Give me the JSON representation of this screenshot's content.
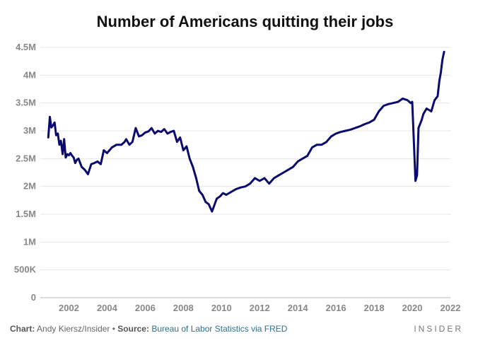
{
  "title": "Number of Americans quitting their jobs",
  "footer": {
    "chart_label": "Chart:",
    "chart_author": "Andy Kiersz/Insider",
    "separator": "•",
    "source_label": "Source:",
    "source_text": "Bureau of Labor Statistics via FRED"
  },
  "brand": "INSIDER",
  "colors": {
    "line": "#0b0b6e",
    "grid": "#e6e6e6",
    "tick_text": "#888888"
  },
  "chart_data": {
    "type": "line",
    "title": "Number of Americans quitting their jobs",
    "xlabel": "",
    "ylabel": "",
    "xlim": [
      2000.5,
      2022.0
    ],
    "ylim": [
      0,
      4.5
    ],
    "grid": true,
    "legend": "none",
    "y_ticks": [
      {
        "value": 0,
        "label": "0"
      },
      {
        "value": 0.5,
        "label": "500K"
      },
      {
        "value": 1,
        "label": "1M"
      },
      {
        "value": 1.5,
        "label": "1.5M"
      },
      {
        "value": 2,
        "label": "2M"
      },
      {
        "value": 2.5,
        "label": "2.5M"
      },
      {
        "value": 3,
        "label": "3M"
      },
      {
        "value": 3.5,
        "label": "3.5M"
      },
      {
        "value": 4,
        "label": "4M"
      },
      {
        "value": 4.5,
        "label": "4.5M"
      }
    ],
    "x_ticks": [
      {
        "value": 2002,
        "label": "2002"
      },
      {
        "value": 2004,
        "label": "2004"
      },
      {
        "value": 2006,
        "label": "2006"
      },
      {
        "value": 2008,
        "label": "2008"
      },
      {
        "value": 2010,
        "label": "2010"
      },
      {
        "value": 2012,
        "label": "2012"
      },
      {
        "value": 2014,
        "label": "2014"
      },
      {
        "value": 2016,
        "label": "2016"
      },
      {
        "value": 2018,
        "label": "2018"
      },
      {
        "value": 2020,
        "label": "2020"
      },
      {
        "value": 2022,
        "label": "2022"
      }
    ],
    "series": [
      {
        "x": [
          2000.92,
          2001.0,
          2001.08,
          2001.17,
          2001.25,
          2001.33,
          2001.42,
          2001.5,
          2001.58,
          2001.67,
          2001.75,
          2001.83,
          2001.92,
          2002.0,
          2002.08,
          2002.17,
          2002.25,
          2002.33,
          2002.42,
          2002.5,
          2002.67,
          2002.83,
          2003.0,
          2003.17,
          2003.33,
          2003.5,
          2003.67,
          2003.83,
          2004.0,
          2004.25,
          2004.5,
          2004.75,
          2004.92,
          2005.0,
          2005.17,
          2005.33,
          2005.5,
          2005.67,
          2005.83,
          2006.0,
          2006.17,
          2006.33,
          2006.5,
          2006.67,
          2006.83,
          2007.0,
          2007.17,
          2007.33,
          2007.5,
          2007.67,
          2007.83,
          2008.0,
          2008.17,
          2008.33,
          2008.5,
          2008.67,
          2008.83,
          2009.0,
          2009.17,
          2009.33,
          2009.5,
          2009.58,
          2009.75,
          2009.92,
          2010.08,
          2010.25,
          2010.5,
          2010.75,
          2011.0,
          2011.25,
          2011.5,
          2011.75,
          2012.0,
          2012.25,
          2012.5,
          2012.75,
          2013.0,
          2013.25,
          2013.5,
          2013.75,
          2014.0,
          2014.25,
          2014.5,
          2014.75,
          2015.0,
          2015.25,
          2015.5,
          2015.75,
          2016.0,
          2016.25,
          2016.5,
          2016.75,
          2017.0,
          2017.25,
          2017.5,
          2017.75,
          2018.0,
          2018.25,
          2018.5,
          2018.75,
          2019.0,
          2019.25,
          2019.5,
          2019.75,
          2019.92,
          2020.0,
          2020.17,
          2020.25,
          2020.33,
          2020.5,
          2020.58,
          2020.75,
          2021.0,
          2021.17,
          2021.33,
          2021.42,
          2021.5,
          2021.58,
          2021.67
        ],
        "y": [
          2.88,
          3.25,
          3.06,
          3.1,
          3.15,
          2.92,
          2.95,
          2.75,
          2.82,
          2.58,
          2.85,
          2.52,
          2.58,
          2.56,
          2.6,
          2.55,
          2.52,
          2.42,
          2.48,
          2.5,
          2.35,
          2.3,
          2.22,
          2.4,
          2.42,
          2.45,
          2.4,
          2.65,
          2.6,
          2.7,
          2.75,
          2.75,
          2.8,
          2.85,
          2.75,
          2.8,
          3.05,
          2.9,
          2.92,
          2.97,
          2.99,
          3.05,
          2.95,
          3.0,
          2.98,
          3.03,
          2.95,
          2.98,
          3.0,
          2.8,
          2.88,
          2.65,
          2.72,
          2.5,
          2.35,
          2.15,
          1.92,
          1.85,
          1.72,
          1.68,
          1.55,
          1.62,
          1.78,
          1.82,
          1.88,
          1.85,
          1.9,
          1.95,
          1.98,
          2.0,
          2.05,
          2.15,
          2.1,
          2.15,
          2.05,
          2.15,
          2.2,
          2.25,
          2.3,
          2.35,
          2.45,
          2.5,
          2.55,
          2.7,
          2.75,
          2.75,
          2.8,
          2.9,
          2.95,
          2.98,
          3.0,
          3.02,
          3.05,
          3.08,
          3.12,
          3.15,
          3.2,
          3.35,
          3.45,
          3.48,
          3.5,
          3.52,
          3.58,
          3.55,
          3.5,
          3.52,
          2.1,
          2.2,
          3.05,
          3.2,
          3.3,
          3.4,
          3.35,
          3.55,
          3.62,
          3.9,
          4.05,
          4.28,
          4.42
        ]
      }
    ]
  }
}
